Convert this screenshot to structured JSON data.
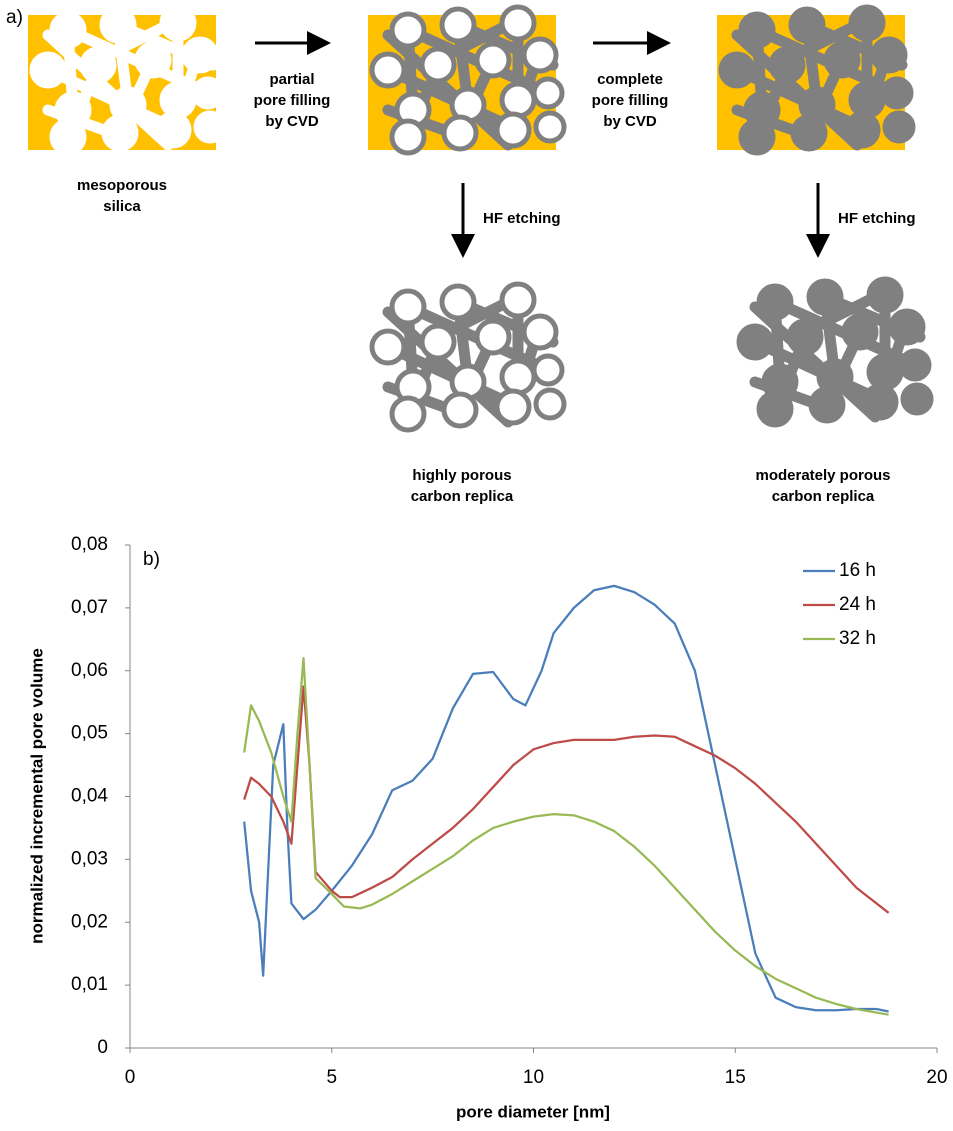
{
  "diagram": {
    "panel_label": "a)",
    "mesoporous_silica": [
      "mesoporous",
      "silica"
    ],
    "partial_filling": [
      "partial",
      "pore filling",
      "by CVD"
    ],
    "complete_filling": [
      "complete",
      "pore filling",
      "by CVD"
    ],
    "etching_1": "HF etching",
    "etching_2": "HF etching",
    "highly_porous": [
      "highly porous",
      "carbon replica"
    ],
    "moderately_porous": [
      "moderately porous",
      "carbon replica"
    ]
  },
  "chart_data": {
    "type": "line",
    "panel_label": "b)",
    "x_label": "pore diameter [nm]",
    "y_label": "normalized incremental pore volume",
    "xlim": [
      0,
      20
    ],
    "xticks": [
      0,
      5,
      10,
      15,
      20
    ],
    "ylim": [
      0,
      0.08
    ],
    "yticks": [
      0,
      {
        "value": 0.01,
        "label": "0,01"
      },
      {
        "value": 0.02,
        "label": "0,02"
      },
      {
        "value": 0.03,
        "label": "0,03"
      },
      {
        "value": 0.04,
        "label": "0,04"
      },
      {
        "value": 0.05,
        "label": "0,05"
      },
      {
        "value": 0.06,
        "label": "0,06"
      },
      {
        "value": 0.07,
        "label": "0,07"
      },
      {
        "value": 0.08,
        "label": "0,08"
      }
    ],
    "grid": false,
    "legend": "top-right",
    "series": [
      {
        "name": "16 h",
        "color": "#4a7ebb",
        "x": [
          2.83,
          3.0,
          3.2,
          3.3,
          3.4,
          3.55,
          3.8,
          3.9,
          4.0,
          4.3,
          4.6,
          5.0,
          5.5,
          6.0,
          6.5,
          7.0,
          7.5,
          8.0,
          8.5,
          9.0,
          9.5,
          9.8,
          10.2,
          10.5,
          11.0,
          11.5,
          12.0,
          12.5,
          13.0,
          13.5,
          14.0,
          14.5,
          15.0,
          15.5,
          16.0,
          16.5,
          17.0,
          17.5,
          18.0,
          18.5,
          18.8
        ],
        "values": [
          0.036,
          0.025,
          0.02,
          0.0115,
          0.025,
          0.045,
          0.0515,
          0.035,
          0.023,
          0.0205,
          0.022,
          0.025,
          0.029,
          0.034,
          0.041,
          0.0425,
          0.046,
          0.054,
          0.0595,
          0.0598,
          0.0555,
          0.0545,
          0.06,
          0.066,
          0.07,
          0.0728,
          0.0735,
          0.0725,
          0.0705,
          0.0675,
          0.06,
          0.045,
          0.03,
          0.015,
          0.008,
          0.0065,
          0.006,
          0.006,
          0.0062,
          0.0062,
          0.0058
        ]
      },
      {
        "name": "24 h",
        "color": "#be4b48",
        "x": [
          2.83,
          3.0,
          3.2,
          3.5,
          3.8,
          4.0,
          4.15,
          4.3,
          4.45,
          4.6,
          5.0,
          5.2,
          5.5,
          6.0,
          6.5,
          7.0,
          7.5,
          8.0,
          8.5,
          9.0,
          9.5,
          10.0,
          10.5,
          11.0,
          11.5,
          12.0,
          12.5,
          13.0,
          13.5,
          14.0,
          14.5,
          15.0,
          15.5,
          16.0,
          16.5,
          17.0,
          17.5,
          18.0,
          18.8
        ],
        "values": [
          0.0395,
          0.043,
          0.042,
          0.04,
          0.036,
          0.0325,
          0.045,
          0.0575,
          0.045,
          0.028,
          0.025,
          0.024,
          0.024,
          0.0255,
          0.0272,
          0.03,
          0.0325,
          0.035,
          0.038,
          0.0415,
          0.045,
          0.0475,
          0.0485,
          0.049,
          0.049,
          0.049,
          0.0495,
          0.0497,
          0.0495,
          0.048,
          0.0465,
          0.0445,
          0.042,
          0.039,
          0.036,
          0.0325,
          0.029,
          0.0255,
          0.0215
        ]
      },
      {
        "name": "32 h",
        "color": "#98b954",
        "x": [
          2.83,
          3.0,
          3.2,
          3.5,
          3.8,
          4.0,
          4.15,
          4.3,
          4.45,
          4.6,
          5.0,
          5.3,
          5.7,
          6.0,
          6.5,
          7.0,
          7.5,
          8.0,
          8.5,
          9.0,
          9.5,
          10.0,
          10.5,
          11.0,
          11.5,
          12.0,
          12.5,
          13.0,
          13.5,
          14.0,
          14.5,
          15.0,
          15.5,
          16.0,
          16.5,
          17.0,
          17.5,
          18.0,
          18.8
        ],
        "values": [
          0.047,
          0.0545,
          0.052,
          0.047,
          0.04,
          0.036,
          0.05,
          0.062,
          0.045,
          0.027,
          0.0245,
          0.0225,
          0.0222,
          0.0228,
          0.0245,
          0.0265,
          0.0285,
          0.0305,
          0.033,
          0.035,
          0.036,
          0.0368,
          0.0372,
          0.037,
          0.036,
          0.0345,
          0.032,
          0.029,
          0.0255,
          0.022,
          0.0185,
          0.0155,
          0.013,
          0.011,
          0.0095,
          0.008,
          0.007,
          0.0062,
          0.0053
        ]
      }
    ]
  }
}
